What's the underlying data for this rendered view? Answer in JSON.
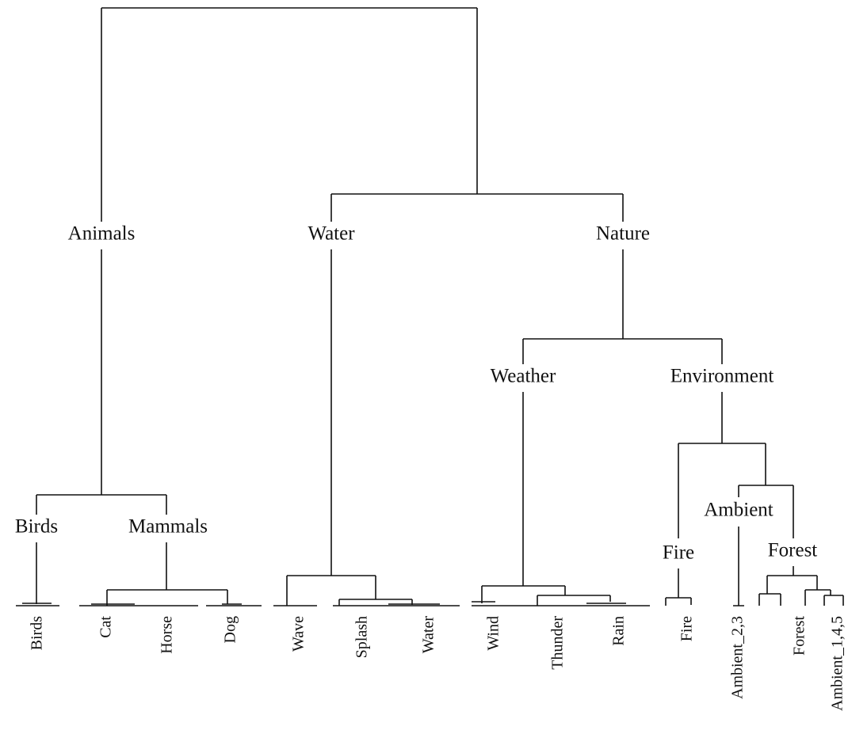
{
  "nodes": [
    {
      "label": "Animals"
    },
    {
      "label": "Water"
    },
    {
      "label": "Nature"
    },
    {
      "label": "Weather"
    },
    {
      "label": "Environment"
    },
    {
      "label": "Birds"
    },
    {
      "label": "Mammals"
    },
    {
      "label": "Ambient"
    },
    {
      "label": "Fire"
    },
    {
      "label": "Forest"
    }
  ],
  "leaves": [
    {
      "label": "Birds"
    },
    {
      "label": "Cat"
    },
    {
      "label": "Horse"
    },
    {
      "label": "Dog"
    },
    {
      "label": "Wave"
    },
    {
      "label": "Splash"
    },
    {
      "label": "Water"
    },
    {
      "label": "Wind"
    },
    {
      "label": "Thunder"
    },
    {
      "label": "Rain"
    },
    {
      "label": "Fire"
    },
    {
      "label": "Ambient_2,3"
    },
    {
      "label": "Forest"
    },
    {
      "label": "Ambient_1,4,5"
    }
  ]
}
